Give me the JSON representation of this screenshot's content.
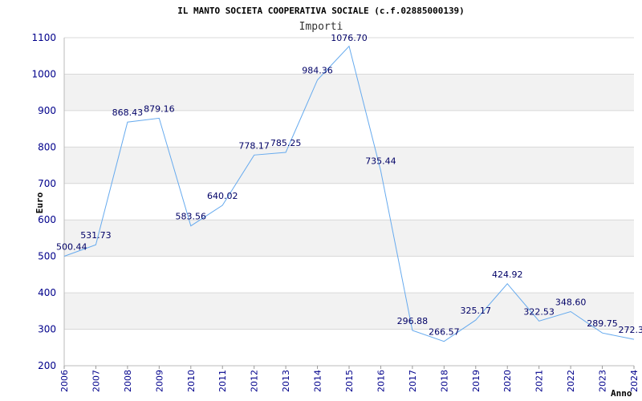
{
  "chart_data": {
    "type": "line",
    "title": "IL MANTO SOCIETA COOPERATIVA SOCIALE (c.f.02885000139)",
    "subtitle": "Importi",
    "xlabel": "Anno",
    "ylabel": "Euro",
    "ylim": [
      200,
      1100
    ],
    "yticks": [
      "200",
      "300",
      "400",
      "500",
      "600",
      "700",
      "800",
      "900",
      "1000",
      "1100"
    ],
    "x": [
      "2006",
      "2007",
      "2008",
      "2009",
      "2010",
      "2011",
      "2012",
      "2013",
      "2014",
      "2015",
      "2016",
      "2017",
      "2018",
      "2019",
      "2020",
      "2021",
      "2022",
      "2023",
      "2024"
    ],
    "values": [
      500.44,
      531.73,
      868.43,
      879.16,
      583.56,
      640.02,
      778.17,
      785.25,
      984.36,
      1076.7,
      735.44,
      296.88,
      266.57,
      325.17,
      424.92,
      322.53,
      348.6,
      289.75,
      272.3
    ],
    "labels": [
      "500.44",
      "531.73",
      "868.43",
      "879.16",
      "583.56",
      "640.02",
      "778.17",
      "785.25",
      "984.36",
      "1076.70",
      "735.44",
      "296.88",
      "266.57",
      "325.17",
      "424.92",
      "322.53",
      "348.60",
      "289.75",
      "272.3"
    ],
    "grid": true,
    "colors": {
      "line": "#66aaee",
      "band": "#f2f2f2",
      "gridline": "#d8d8d8",
      "tick_text": "#00008b",
      "label_text": "#000066"
    }
  }
}
